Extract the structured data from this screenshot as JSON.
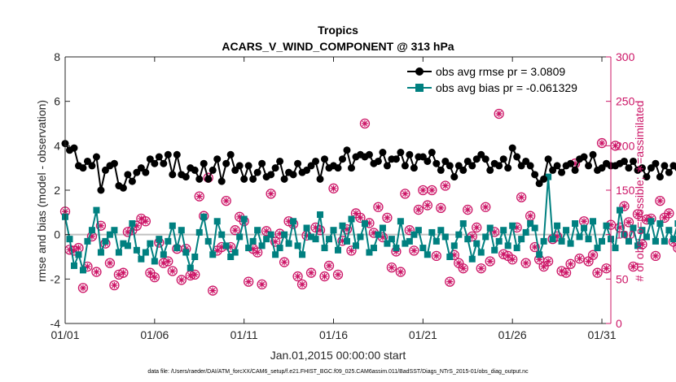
{
  "chart_data": {
    "type": "line",
    "title": "Tropics",
    "subtitle": "ACARS_V_WIND_COMPONENT @ 313 hPa",
    "xlabel": "Jan.01,2015 00:00:00 start",
    "ylabel": "rmse and bias (model - observation)",
    "y2label": "# of obs: o=possible; ∗=assimilated",
    "footnote": "data file: /Users/raeder/DAI/ATM_forcXX/CAM6_setup/f.e21.FHIST_BGC.f09_025.CAM6assim.011/BadSST/Diags_NTrS_2015-01/obs_diag_output.nc",
    "xlim": [
      0,
      30.5
    ],
    "ylim": [
      -4,
      8
    ],
    "y2lim": [
      0,
      300
    ],
    "x_tick_values": [
      0,
      5,
      10,
      15,
      20,
      25,
      30
    ],
    "x_tick_labels": [
      "01/01",
      "01/06",
      "01/11",
      "01/16",
      "01/21",
      "01/26",
      "01/31"
    ],
    "y_ticks": [
      "-4",
      "-2",
      "0",
      "2",
      "4",
      "6",
      "8"
    ],
    "y2_ticks": [
      "0",
      "50",
      "100",
      "150",
      "200",
      "250",
      "300"
    ],
    "grid": false,
    "legend_position": "top-right",
    "x_step_days": 0.25,
    "series": [
      {
        "name": "obs avg rmse pr = 3.0809",
        "color": "#000000",
        "marker": "circle",
        "axis": "left",
        "values": [
          4.1,
          3.8,
          3.9,
          3.1,
          3.0,
          3.3,
          3.1,
          3.5,
          2.0,
          2.9,
          3.1,
          3.2,
          2.2,
          2.1,
          2.7,
          2.4,
          2.8,
          3.0,
          2.8,
          3.4,
          3.2,
          3.5,
          3.2,
          3.6,
          2.7,
          3.6,
          2.7,
          2.6,
          3.0,
          2.9,
          2.5,
          3.2,
          2.5,
          2.9,
          3.4,
          2.4,
          3.2,
          3.6,
          2.9,
          3.1,
          2.5,
          3.1,
          2.5,
          2.8,
          3.2,
          2.6,
          2.7,
          3.0,
          3.3,
          2.5,
          2.8,
          2.7,
          3.2,
          2.8,
          2.9,
          3.1,
          3.3,
          2.5,
          3.4,
          3.0,
          3.1,
          3.0,
          3.4,
          3.8,
          3.0,
          3.5,
          3.6,
          3.5,
          3.6,
          3.2,
          3.3,
          3.7,
          3.1,
          3.4,
          3.4,
          3.7,
          3.1,
          3.6,
          3.0,
          3.5,
          3.5,
          3.3,
          3.7,
          3.2,
          2.9,
          3.3,
          3.1,
          2.6,
          3.1,
          2.9,
          3.3,
          3.1,
          3.4,
          3.6,
          3.4,
          2.9,
          3.2,
          3.1,
          3.4,
          3.0,
          3.9,
          3.5,
          3.1,
          3.3,
          3.1,
          2.7,
          2.3,
          2.5,
          3.4,
          2.9,
          3.1,
          2.8,
          3.1,
          3.2,
          2.9,
          3.4,
          3.5,
          3.1,
          3.6,
          2.9,
          3.0,
          3.2,
          3.1,
          3.1,
          3.2,
          3.3,
          3.0,
          3.3,
          2.9,
          3.0,
          2.6,
          3.0,
          3.2,
          2.6,
          3.1,
          2.8,
          3.1,
          3.0,
          2.9,
          3.4,
          2.9,
          3.0,
          3.2,
          3.2,
          3.3,
          2.8,
          3.0,
          2.8,
          2.9,
          3.2,
          2.8,
          3.1,
          2.7,
          3.1,
          3.0,
          2.8,
          3.0,
          3.0,
          3.3,
          2.8,
          2.9,
          3.0,
          3.4,
          3.1,
          3.0,
          2.9,
          3.0,
          2.9,
          3.4,
          3.3,
          3.2,
          3.5,
          3.6,
          3.0,
          3.2,
          2.7,
          3.3,
          2.8,
          3.0,
          2.9,
          3.2,
          3.1,
          3.0,
          3.3,
          3.0,
          3.3,
          2.9,
          3.1,
          2.7,
          2.8,
          2.6,
          2.5,
          2.4,
          2.2,
          2.3,
          2.4
        ]
      },
      {
        "name": "obs avg bias pr = -0.061329",
        "color": "#008080",
        "marker": "square",
        "axis": "left",
        "values": [
          0.8,
          -0.2,
          -1.4,
          -0.9,
          -1.6,
          -0.3,
          0.2,
          1.1,
          -0.8,
          -0.3,
          0.0,
          0.2,
          -0.8,
          -0.4,
          -0.5,
          0.5,
          -0.7,
          -1.1,
          -0.8,
          -0.4,
          -1.2,
          -0.2,
          -0.9,
          -0.3,
          0.4,
          -0.6,
          0.2,
          -0.8,
          -1.5,
          -1.0,
          0.1,
          0.8,
          -0.3,
          -0.9,
          0.6,
          0.0,
          -0.5,
          -1.0,
          -0.8,
          -0.1,
          0.7,
          -0.6,
          -0.3,
          0.2,
          -0.5,
          -0.2,
          0.0,
          -0.9,
          -0.6,
          0.0,
          -0.4,
          0.6,
          -0.5,
          -0.9,
          0.3,
          -0.1,
          -0.2,
          0.9,
          -0.6,
          -0.2,
          0.2,
          -0.7,
          0.4,
          -0.3,
          0.7,
          -0.5,
          -0.1,
          0.5,
          -0.8,
          -0.6,
          0.0,
          0.3,
          -0.4,
          -0.2,
          -0.6,
          0.6,
          -0.4,
          -0.3,
          0.0,
          0.2,
          -0.6,
          -0.9,
          0.1,
          -0.3,
          0.2,
          -0.1,
          -1.0,
          -0.5,
          0.0,
          0.5,
          -0.2,
          -1.1,
          -0.4,
          -0.8,
          -0.1,
          0.3,
          -0.7,
          -0.3,
          0.2,
          -0.5,
          0.4,
          -0.6,
          -0.2,
          0.1,
          0.5,
          0.3,
          -0.9,
          -0.3,
          2.6,
          -0.2,
          0.4,
          -0.3,
          0.2,
          -0.4,
          0.5,
          -0.1,
          0.3,
          -0.2,
          0.6,
          -0.6,
          -0.3,
          0.4,
          -0.2,
          -0.6,
          1.1,
          0.0,
          -0.3,
          0.3,
          -0.5,
          0.2,
          -0.1,
          0.6,
          -0.3,
          0.5,
          -0.3,
          0.2,
          -0.2,
          0.5,
          0.9,
          -0.4,
          -0.3,
          0.0,
          -0.6,
          -0.4,
          2.7,
          -0.2,
          0.1,
          0.4,
          -0.4,
          0.5,
          -0.6,
          -0.3,
          0.2,
          0.0,
          -0.2,
          0.5,
          -0.3,
          -0.1,
          0.4,
          -0.5,
          0.5,
          0.4,
          0.2,
          -0.3,
          -0.2,
          1.5,
          -0.4,
          0.5,
          0.6,
          0.6,
          0.6,
          -0.3,
          0.7,
          -0.6,
          -0.7,
          0.4,
          -0.2,
          0.7,
          -1.0,
          -0.4,
          0.2,
          0.5,
          0.4,
          -0.2,
          0.1,
          0.0,
          1.0,
          0.5,
          -0.4,
          0.1,
          0.0
        ]
      },
      {
        "name": "possible obs count",
        "color": "#cc1466",
        "marker": "open-circle",
        "axis": "right",
        "values": [
          126,
          83,
          82,
          85,
          40,
          64,
          98,
          58,
          110,
          90,
          68,
          43,
          55,
          57,
          103,
          105,
          110,
          118,
          115,
          57,
          52,
          91,
          68,
          70,
          59,
          84,
          49,
          84,
          54,
          55,
          143,
          121,
          164,
          37,
          82,
          86,
          138,
          86,
          105,
          120,
          115,
          47,
          84,
          80,
          44,
          104,
          146,
          92,
          101,
          69,
          115,
          112,
          53,
          44,
          99,
          57,
          108,
          105,
          53,
          65,
          152,
          55,
          93,
          106,
          82,
          124,
          119,
          225,
          113,
          102,
          131,
          97,
          119,
          63,
          81,
          58,
          146,
          105,
          82,
          128,
          150,
          133,
          150,
          76,
          130,
          155,
          47,
          77,
          68,
          62,
          128,
          98,
          108,
          62,
          131,
          70,
          103,
          236,
          78,
          76,
          72,
          108,
          142,
          68,
          121,
          86,
          72,
          64,
          70,
          95,
          98,
          59,
          57,
          67,
          180,
          73,
          115,
          70,
          77,
          57,
          203,
          62,
          111,
          200,
          108,
          132,
          114,
          64,
          123,
          89,
          117,
          118,
          76,
          138,
          119,
          124,
          92,
          85,
          96,
          84,
          134,
          54,
          164,
          126,
          64,
          106,
          119,
          123,
          147,
          103,
          118,
          88,
          71,
          124,
          120,
          112,
          103,
          211,
          59,
          161,
          98,
          118,
          59,
          138,
          72,
          114,
          61,
          107,
          132,
          126,
          140,
          127,
          78,
          148,
          58,
          82,
          123,
          98,
          96,
          125,
          106,
          60,
          101,
          71,
          122,
          77,
          144,
          107,
          118,
          124,
          82,
          63,
          61,
          125,
          132,
          0
        ]
      },
      {
        "name": "assimilated obs count",
        "color": "#cc1466",
        "marker": "asterisk",
        "axis": "right",
        "values": [
          126,
          83,
          82,
          85,
          40,
          64,
          98,
          58,
          110,
          90,
          68,
          43,
          55,
          57,
          103,
          105,
          110,
          118,
          115,
          57,
          52,
          91,
          68,
          70,
          59,
          84,
          49,
          84,
          54,
          55,
          143,
          121,
          164,
          37,
          82,
          86,
          138,
          86,
          105,
          120,
          115,
          47,
          84,
          80,
          44,
          104,
          146,
          92,
          101,
          69,
          115,
          112,
          53,
          44,
          99,
          57,
          108,
          105,
          53,
          65,
          152,
          55,
          93,
          106,
          82,
          124,
          119,
          225,
          113,
          102,
          131,
          97,
          119,
          63,
          81,
          58,
          146,
          105,
          82,
          128,
          150,
          133,
          150,
          76,
          130,
          155,
          47,
          77,
          68,
          62,
          128,
          98,
          108,
          62,
          131,
          70,
          103,
          236,
          78,
          76,
          72,
          108,
          142,
          68,
          121,
          86,
          72,
          64,
          70,
          95,
          98,
          59,
          57,
          67,
          180,
          73,
          115,
          70,
          77,
          57,
          203,
          62,
          111,
          200,
          108,
          132,
          114,
          64,
          123,
          89,
          117,
          118,
          76,
          138,
          119,
          124,
          92,
          85,
          96,
          84,
          134,
          54,
          164,
          126,
          64,
          106,
          119,
          123,
          147,
          103,
          118,
          88,
          71,
          124,
          120,
          112,
          103,
          211,
          51,
          161,
          98,
          118,
          59,
          138,
          72,
          114,
          61,
          107,
          132,
          126,
          140,
          127,
          78,
          148,
          58,
          82,
          123,
          98,
          96,
          125,
          106,
          60,
          101,
          71,
          122,
          77,
          144,
          107,
          118,
          124,
          82,
          63,
          61,
          125,
          132,
          0
        ]
      }
    ]
  }
}
